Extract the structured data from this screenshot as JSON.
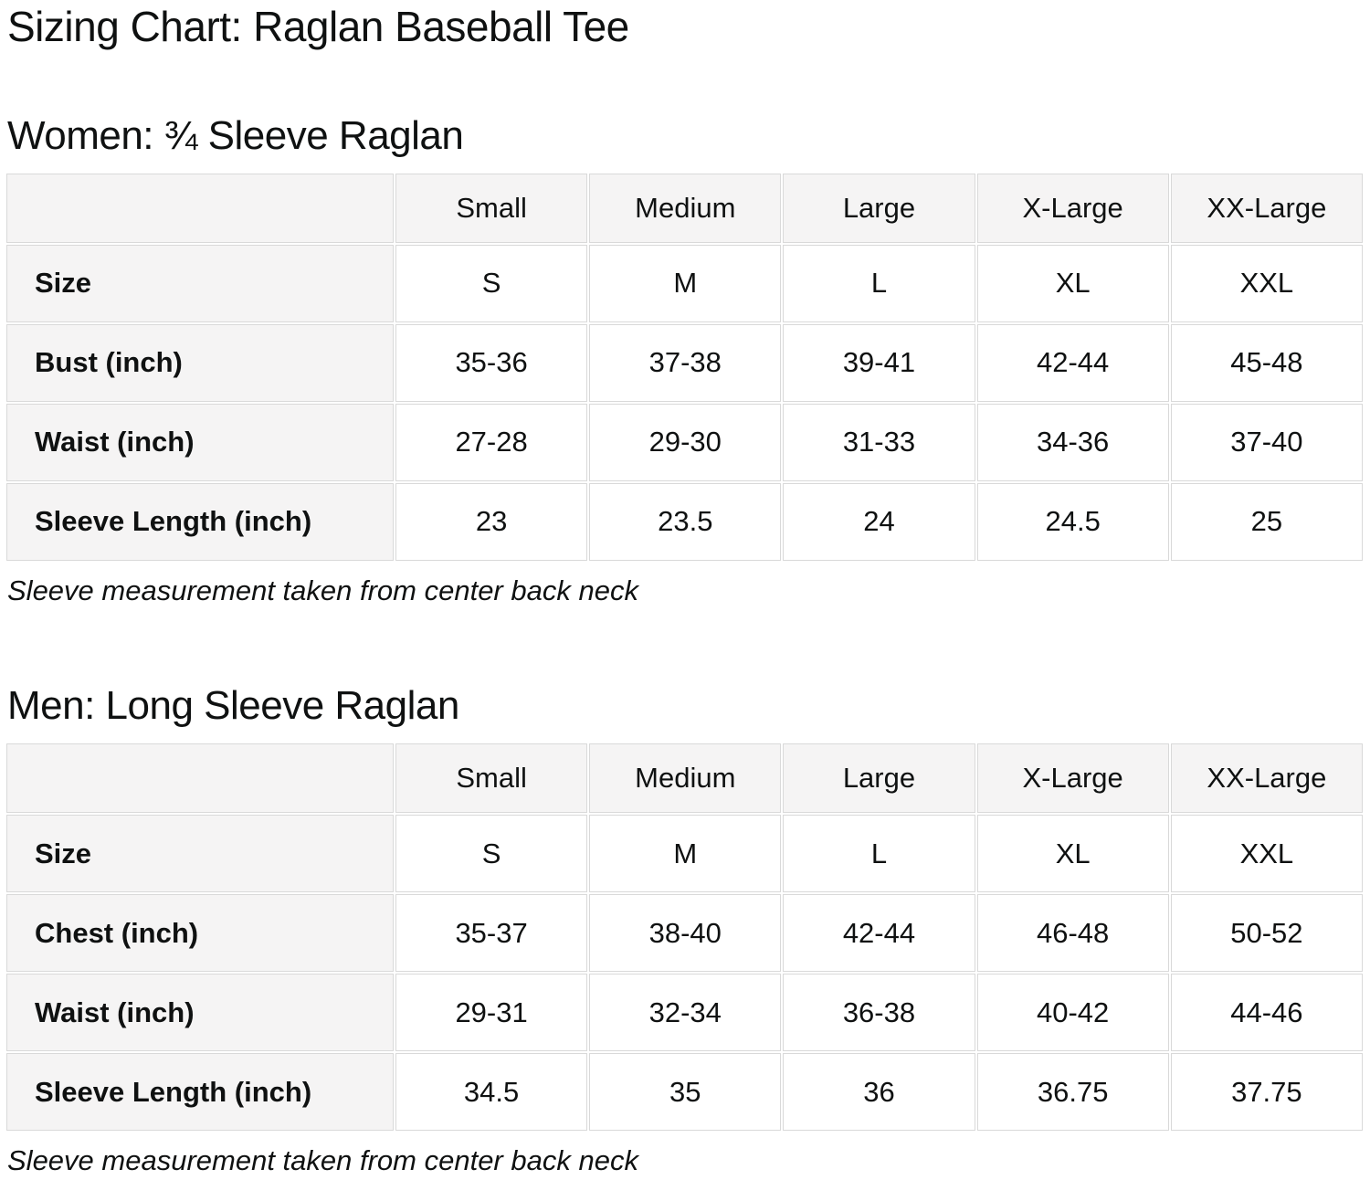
{
  "page": {
    "title": "Sizing Chart: Raglan Baseball Tee"
  },
  "colors": {
    "text": "#0f1111",
    "cell_header_bg": "#f5f4f4",
    "cell_data_bg": "#ffffff",
    "cell_border": "#d9d9d9",
    "page_bg": "#ffffff"
  },
  "sections": [
    {
      "heading": "Women: ¾ Sleeve Raglan",
      "note": "Sleeve measurement taken from center back neck",
      "table": {
        "columns": [
          "",
          "Small",
          "Medium",
          "Large",
          "X-Large",
          "XX-Large"
        ],
        "rows": [
          {
            "label": "Size",
            "values": [
              "S",
              "M",
              "L",
              "XL",
              "XXL"
            ]
          },
          {
            "label": "Bust (inch)",
            "values": [
              "35-36",
              "37-38",
              "39-41",
              "42-44",
              "45-48"
            ]
          },
          {
            "label": "Waist (inch)",
            "values": [
              "27-28",
              "29-30",
              "31-33",
              "34-36",
              "37-40"
            ]
          },
          {
            "label": "Sleeve Length (inch)",
            "values": [
              "23",
              "23.5",
              "24",
              "24.5",
              "25"
            ]
          }
        ]
      }
    },
    {
      "heading": "Men: Long Sleeve Raglan",
      "note": "Sleeve measurement taken from center back neck",
      "table": {
        "columns": [
          "",
          "Small",
          "Medium",
          "Large",
          "X-Large",
          "XX-Large"
        ],
        "rows": [
          {
            "label": "Size",
            "values": [
              "S",
              "M",
              "L",
              "XL",
              "XXL"
            ]
          },
          {
            "label": "Chest (inch)",
            "values": [
              "35-37",
              "38-40",
              "42-44",
              "46-48",
              "50-52"
            ]
          },
          {
            "label": "Waist (inch)",
            "values": [
              "29-31",
              "32-34",
              "36-38",
              "40-42",
              "44-46"
            ]
          },
          {
            "label": "Sleeve Length (inch)",
            "values": [
              "34.5",
              "35",
              "36",
              "36.75",
              "37.75"
            ]
          }
        ]
      }
    }
  ]
}
